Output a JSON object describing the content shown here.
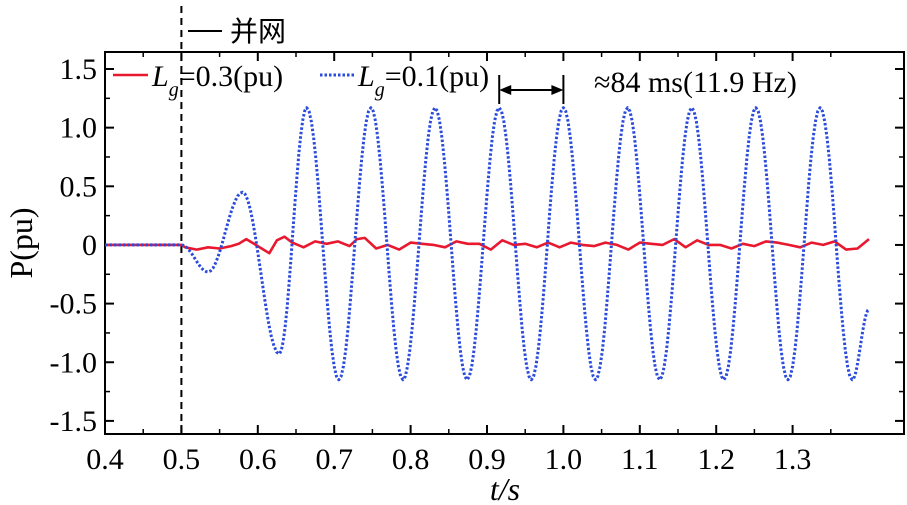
{
  "chart_data": {
    "type": "line",
    "title": "",
    "xlabel": "t/s",
    "ylabel": "P(pu)",
    "xlim": [
      0.4,
      1.4
    ],
    "ylim": [
      -1.6,
      1.6
    ],
    "xticks": [
      "0.4",
      "0.5",
      "0.6",
      "0.7",
      "0.8",
      "0.9",
      "1.0",
      "1.1",
      "1.2",
      "1.3"
    ],
    "xtick_values": [
      0.4,
      0.5,
      0.6,
      0.7,
      0.8,
      0.9,
      1.0,
      1.1,
      1.2,
      1.3
    ],
    "yticks": [
      "1.5",
      "1.0",
      "0.5",
      "0",
      "-0.5",
      "-1.0",
      "-1.5"
    ],
    "ytick_values": [
      1.5,
      1.0,
      0.5,
      0,
      -0.5,
      -1.0,
      -1.5
    ],
    "grid": false,
    "series": [
      {
        "name": "Lg=0.3(pu)",
        "legend_main": "L",
        "legend_sub": "g",
        "legend_rest": "=0.3(pu)",
        "color": "#e8182f",
        "style": "solid",
        "x": [
          0.4,
          0.5,
          0.505,
          0.52,
          0.535,
          0.55,
          0.565,
          0.575,
          0.585,
          0.6,
          0.615,
          0.625,
          0.635,
          0.645,
          0.66,
          0.675,
          0.69,
          0.705,
          0.72,
          0.73,
          0.74,
          0.755,
          0.77,
          0.785,
          0.8,
          0.815,
          0.83,
          0.845,
          0.86,
          0.875,
          0.89,
          0.905,
          0.92,
          0.935,
          0.95,
          0.965,
          0.98,
          0.995,
          1.01,
          1.025,
          1.04,
          1.055,
          1.07,
          1.085,
          1.1,
          1.115,
          1.13,
          1.145,
          1.16,
          1.175,
          1.19,
          1.205,
          1.22,
          1.235,
          1.25,
          1.265,
          1.28,
          1.295,
          1.31,
          1.325,
          1.34,
          1.355,
          1.37,
          1.385,
          1.4
        ],
        "y": [
          0,
          0,
          -0.02,
          -0.04,
          -0.02,
          -0.03,
          -0.01,
          0.01,
          0.05,
          -0.01,
          -0.07,
          0.04,
          0.07,
          0.02,
          -0.02,
          0.03,
          0.01,
          0.03,
          -0.01,
          0.05,
          0.06,
          -0.03,
          0.0,
          -0.04,
          0.02,
          0.01,
          0.0,
          -0.02,
          0.03,
          0.01,
          0.01,
          -0.04,
          0.04,
          0.0,
          0.01,
          -0.02,
          0.02,
          -0.02,
          0.02,
          0.0,
          -0.01,
          0.02,
          0.0,
          -0.04,
          0.02,
          0.01,
          0.0,
          0.05,
          -0.02,
          0.04,
          0.0,
          0.0,
          -0.03,
          0.01,
          -0.01,
          0.03,
          0.02,
          0.0,
          -0.02,
          0.02,
          0.0,
          0.03,
          -0.04,
          -0.03,
          0.05
        ]
      },
      {
        "name": "Lg=0.1(pu)",
        "legend_main": "L",
        "legend_sub": "g",
        "legend_rest": "=0.1(pu)",
        "color": "#2b4bdc",
        "style": "dotted",
        "x": [
          0.4,
          0.5,
          0.535,
          0.58,
          0.628,
          0.664,
          0.706,
          0.748,
          0.79,
          0.832,
          0.874,
          0.916,
          0.958,
          1.0,
          1.042,
          1.084,
          1.126,
          1.168,
          1.21,
          1.252,
          1.294,
          1.336,
          1.378,
          1.4
        ],
        "y": [
          0,
          0,
          -0.23,
          0.45,
          -0.93,
          1.17,
          -1.15,
          1.17,
          -1.15,
          1.17,
          -1.15,
          1.17,
          -1.15,
          1.17,
          -1.15,
          1.17,
          -1.15,
          1.17,
          -1.15,
          1.17,
          -1.15,
          1.17,
          -1.15,
          -0.55
        ]
      }
    ],
    "annotations": {
      "grid_connect_label": "并网",
      "grid_connect_time": 0.5,
      "period_label": "≈84 ms(11.9 Hz)",
      "period_start": 0.916,
      "period_end": 1.0
    }
  }
}
